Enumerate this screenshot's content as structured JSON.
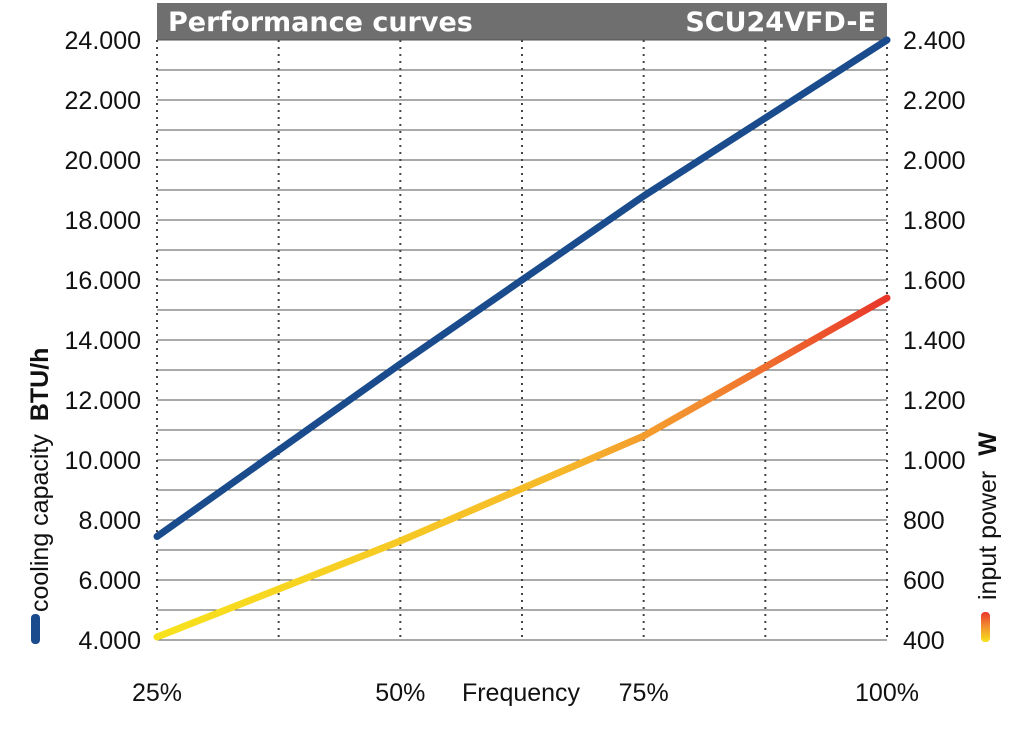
{
  "header": {
    "title": "Performance curves",
    "model": "SCU24VFD-E"
  },
  "chart_data": {
    "type": "line",
    "title": "Performance curves",
    "subtitle": "SCU24VFD-E",
    "xlabel": "Frequency",
    "x_ticks": [
      "25%",
      "50%",
      "75%",
      "100%"
    ],
    "x": [
      25,
      50,
      75,
      100
    ],
    "xlim": [
      25,
      100
    ],
    "y_left": {
      "label": "cooling capacity",
      "unit": "BTU/h",
      "ylim": [
        4000,
        24000
      ],
      "ticks": [
        "4.000",
        "6.000",
        "8.000",
        "10.000",
        "12.000",
        "14.000",
        "16.000",
        "18.000",
        "20.000",
        "22.000",
        "24.000"
      ]
    },
    "y_right": {
      "label": "input power",
      "unit": "W",
      "ylim": [
        400,
        2400
      ],
      "ticks": [
        "400",
        "600",
        "800",
        "1.000",
        "1.200",
        "1.400",
        "1.600",
        "1.800",
        "2.000",
        "2.200",
        "2.400"
      ]
    },
    "series": [
      {
        "axis": "left",
        "color": "#1a4b8c",
        "values": [
          7450,
          13200,
          18800,
          24000
        ]
      },
      {
        "axis": "right",
        "gradient": [
          "#f7e21c",
          "#f28a30",
          "#e8362a"
        ],
        "values": [
          410,
          730,
          1080,
          1540
        ]
      }
    ],
    "grid": true
  }
}
